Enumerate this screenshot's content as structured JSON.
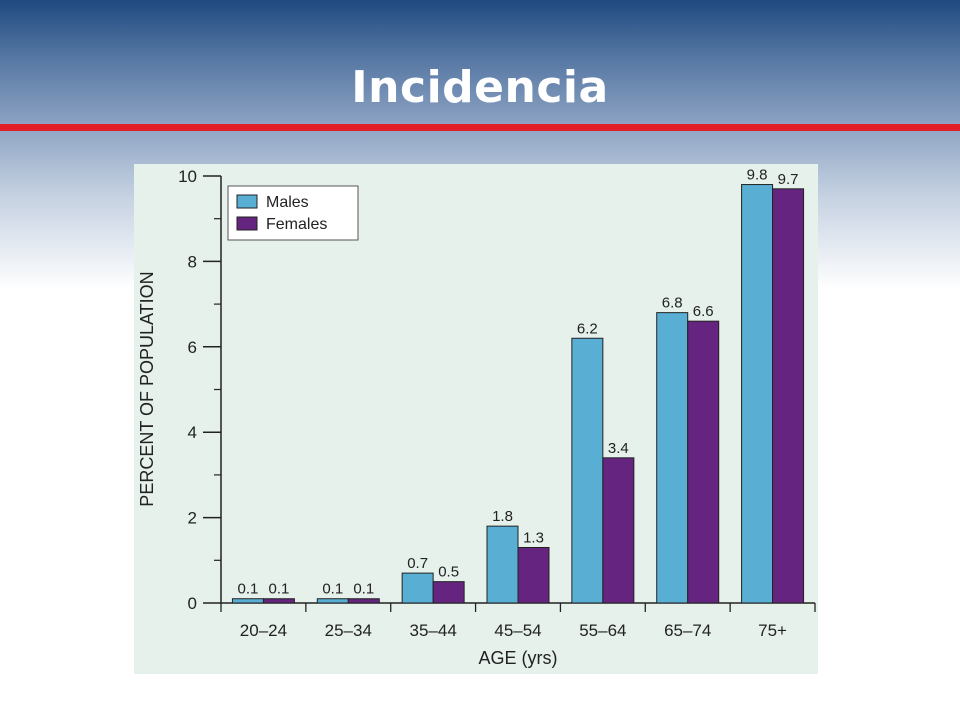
{
  "slide": {
    "title": "Incidencia"
  },
  "colors": {
    "header_top": "#1f4a80",
    "title_rule": "#e21f26",
    "panel_bg": "#e6f1ec",
    "males": "#58aed3",
    "females": "#65247f"
  },
  "chart_data": {
    "type": "bar",
    "categories": [
      "20–24",
      "25–34",
      "35–44",
      "45–54",
      "55–64",
      "65–74",
      "75+"
    ],
    "series": [
      {
        "name": "Males",
        "values": [
          0.1,
          0.1,
          0.7,
          1.8,
          6.2,
          6.8,
          9.8
        ],
        "labels": [
          "0.1",
          "0.1",
          "0.7",
          "1.8",
          "6.2",
          "6.8",
          "9.8"
        ]
      },
      {
        "name": "Females",
        "values": [
          0.1,
          0.1,
          0.5,
          1.3,
          3.4,
          6.6,
          9.7
        ],
        "labels": [
          "0.1",
          "0.1",
          "0.5",
          "1.3",
          "3.4",
          "6.6",
          "9.7"
        ]
      }
    ],
    "xlabel": "AGE (yrs)",
    "ylabel": "PERCENT OF POPULATION",
    "ylim": [
      0,
      10
    ],
    "yticks": [
      0,
      2,
      4,
      6,
      8,
      10
    ],
    "ytick_labels": [
      "0",
      "2",
      "4",
      "6",
      "8",
      "10"
    ],
    "grid": false,
    "legend_position": "top-left"
  }
}
